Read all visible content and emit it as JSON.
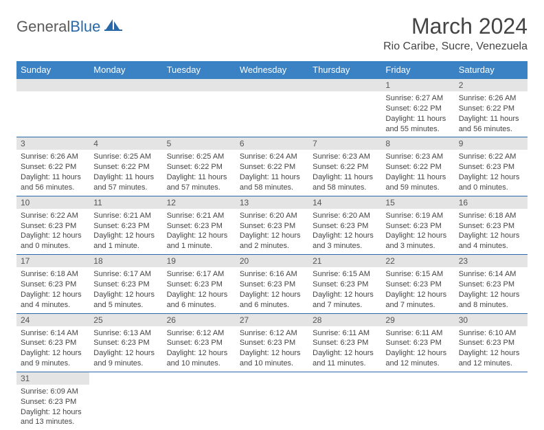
{
  "logo": {
    "text1": "General",
    "text2": "Blue"
  },
  "title": "March 2024",
  "location": "Rio Caribe, Sucre, Venezuela",
  "colors": {
    "header_bg": "#3b82c4",
    "header_text": "#ffffff",
    "daybar_bg": "#e4e4e4",
    "row_border": "#2968a8",
    "logo_gray": "#5a5a5a",
    "logo_blue": "#2968a8"
  },
  "dayNames": [
    "Sunday",
    "Monday",
    "Tuesday",
    "Wednesday",
    "Thursday",
    "Friday",
    "Saturday"
  ],
  "weeks": [
    [
      null,
      null,
      null,
      null,
      null,
      {
        "n": "1",
        "sr": "6:27 AM",
        "ss": "6:22 PM",
        "dl": "11 hours and 55 minutes."
      },
      {
        "n": "2",
        "sr": "6:26 AM",
        "ss": "6:22 PM",
        "dl": "11 hours and 56 minutes."
      }
    ],
    [
      {
        "n": "3",
        "sr": "6:26 AM",
        "ss": "6:22 PM",
        "dl": "11 hours and 56 minutes."
      },
      {
        "n": "4",
        "sr": "6:25 AM",
        "ss": "6:22 PM",
        "dl": "11 hours and 57 minutes."
      },
      {
        "n": "5",
        "sr": "6:25 AM",
        "ss": "6:22 PM",
        "dl": "11 hours and 57 minutes."
      },
      {
        "n": "6",
        "sr": "6:24 AM",
        "ss": "6:22 PM",
        "dl": "11 hours and 58 minutes."
      },
      {
        "n": "7",
        "sr": "6:23 AM",
        "ss": "6:22 PM",
        "dl": "11 hours and 58 minutes."
      },
      {
        "n": "8",
        "sr": "6:23 AM",
        "ss": "6:22 PM",
        "dl": "11 hours and 59 minutes."
      },
      {
        "n": "9",
        "sr": "6:22 AM",
        "ss": "6:23 PM",
        "dl": "12 hours and 0 minutes."
      }
    ],
    [
      {
        "n": "10",
        "sr": "6:22 AM",
        "ss": "6:23 PM",
        "dl": "12 hours and 0 minutes."
      },
      {
        "n": "11",
        "sr": "6:21 AM",
        "ss": "6:23 PM",
        "dl": "12 hours and 1 minute."
      },
      {
        "n": "12",
        "sr": "6:21 AM",
        "ss": "6:23 PM",
        "dl": "12 hours and 1 minute."
      },
      {
        "n": "13",
        "sr": "6:20 AM",
        "ss": "6:23 PM",
        "dl": "12 hours and 2 minutes."
      },
      {
        "n": "14",
        "sr": "6:20 AM",
        "ss": "6:23 PM",
        "dl": "12 hours and 3 minutes."
      },
      {
        "n": "15",
        "sr": "6:19 AM",
        "ss": "6:23 PM",
        "dl": "12 hours and 3 minutes."
      },
      {
        "n": "16",
        "sr": "6:18 AM",
        "ss": "6:23 PM",
        "dl": "12 hours and 4 minutes."
      }
    ],
    [
      {
        "n": "17",
        "sr": "6:18 AM",
        "ss": "6:23 PM",
        "dl": "12 hours and 4 minutes."
      },
      {
        "n": "18",
        "sr": "6:17 AM",
        "ss": "6:23 PM",
        "dl": "12 hours and 5 minutes."
      },
      {
        "n": "19",
        "sr": "6:17 AM",
        "ss": "6:23 PM",
        "dl": "12 hours and 6 minutes."
      },
      {
        "n": "20",
        "sr": "6:16 AM",
        "ss": "6:23 PM",
        "dl": "12 hours and 6 minutes."
      },
      {
        "n": "21",
        "sr": "6:15 AM",
        "ss": "6:23 PM",
        "dl": "12 hours and 7 minutes."
      },
      {
        "n": "22",
        "sr": "6:15 AM",
        "ss": "6:23 PM",
        "dl": "12 hours and 7 minutes."
      },
      {
        "n": "23",
        "sr": "6:14 AM",
        "ss": "6:23 PM",
        "dl": "12 hours and 8 minutes."
      }
    ],
    [
      {
        "n": "24",
        "sr": "6:14 AM",
        "ss": "6:23 PM",
        "dl": "12 hours and 9 minutes."
      },
      {
        "n": "25",
        "sr": "6:13 AM",
        "ss": "6:23 PM",
        "dl": "12 hours and 9 minutes."
      },
      {
        "n": "26",
        "sr": "6:12 AM",
        "ss": "6:23 PM",
        "dl": "12 hours and 10 minutes."
      },
      {
        "n": "27",
        "sr": "6:12 AM",
        "ss": "6:23 PM",
        "dl": "12 hours and 10 minutes."
      },
      {
        "n": "28",
        "sr": "6:11 AM",
        "ss": "6:23 PM",
        "dl": "12 hours and 11 minutes."
      },
      {
        "n": "29",
        "sr": "6:11 AM",
        "ss": "6:23 PM",
        "dl": "12 hours and 12 minutes."
      },
      {
        "n": "30",
        "sr": "6:10 AM",
        "ss": "6:23 PM",
        "dl": "12 hours and 12 minutes."
      }
    ],
    [
      {
        "n": "31",
        "sr": "6:09 AM",
        "ss": "6:23 PM",
        "dl": "12 hours and 13 minutes."
      },
      null,
      null,
      null,
      null,
      null,
      null
    ]
  ],
  "labels": {
    "sunrise": "Sunrise:",
    "sunset": "Sunset:",
    "daylight": "Daylight:"
  }
}
